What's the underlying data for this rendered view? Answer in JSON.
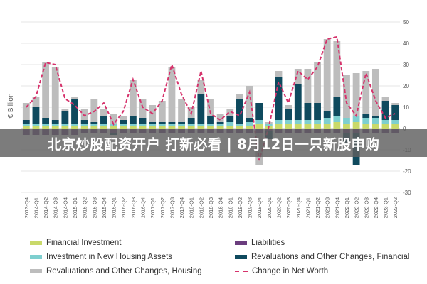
{
  "banner": {
    "text": "北京炒股配资开户 打新必看 | 8月12日一只新股申购"
  },
  "chart_data": {
    "type": "bar",
    "stacked": true,
    "title": "",
    "xlabel": "",
    "ylabel": "€ Billion",
    "ylim": [
      -30,
      50
    ],
    "yticks": [
      50,
      40,
      30,
      20,
      10,
      0,
      -10,
      -20,
      -30
    ],
    "grid": true,
    "legend_position": "bottom",
    "categories": [
      "2013-Q4",
      "2014-Q1",
      "2014-Q2",
      "2014-Q3",
      "2014-Q4",
      "2015-Q1",
      "2015-Q2",
      "2015-Q3",
      "2015-Q4",
      "2016-Q1",
      "2016-Q2",
      "2016-Q3",
      "2016-Q4",
      "2017-Q1",
      "2017-Q2",
      "2017-Q3",
      "2017-Q4",
      "2018-Q1",
      "2018-Q2",
      "2018-Q3",
      "2018-Q4",
      "2019-Q1",
      "2019-Q2",
      "2019-Q3",
      "2019-Q4",
      "2020-Q1",
      "2020-Q2",
      "2020-Q3",
      "2020-Q4",
      "2021-Q1",
      "2021-Q2",
      "2021-Q3",
      "2021-Q4",
      "2022-Q1",
      "2022-Q2",
      "2022-Q3",
      "2022-Q4",
      "2023-Q1",
      "2023-Q2"
    ],
    "series": [
      {
        "name": "Financial Investment",
        "color": "#c9d96a",
        "values": [
          1,
          1,
          1,
          1,
          1,
          1,
          1,
          1,
          1,
          1,
          1,
          1,
          1,
          1,
          1,
          1,
          1,
          1,
          1,
          1,
          1,
          1,
          1,
          1,
          2,
          1,
          2,
          2,
          2,
          2,
          2,
          2,
          3,
          2,
          3,
          2,
          2,
          2,
          2
        ]
      },
      {
        "name": "Liabilities",
        "color": "#6b3d7e",
        "values": [
          -3,
          -3,
          -3,
          -3,
          -3,
          -3,
          -2,
          -2,
          -2,
          -2,
          -2,
          -2,
          -2,
          -2,
          -2,
          -2,
          -2,
          -2,
          -2,
          -2,
          -2,
          -2,
          -2,
          -2,
          -2,
          -1,
          -2,
          -2,
          -2,
          -2,
          -2,
          -2,
          -2,
          -2,
          -2,
          -2,
          -2,
          -2,
          -2
        ]
      },
      {
        "name": "Investment in New Housing Assets",
        "color": "#7ecfcf",
        "values": [
          1,
          1,
          1,
          1,
          1,
          1,
          1,
          1,
          1,
          1,
          1,
          1,
          1,
          1,
          1,
          1,
          1,
          1,
          1,
          1,
          1,
          2,
          1,
          2,
          2,
          1,
          2,
          2,
          2,
          2,
          2,
          3,
          3,
          3,
          3,
          3,
          3,
          2,
          2
        ]
      },
      {
        "name": "Revaluations and Other Changes, Financial",
        "color": "#0f4a5e",
        "values": [
          2,
          8,
          3,
          2,
          6,
          12,
          2,
          1,
          4,
          -1,
          2,
          4,
          3,
          1,
          1,
          1,
          1,
          3,
          14,
          4,
          1,
          3,
          12,
          2,
          8,
          -4,
          20,
          5,
          17,
          8,
          8,
          3,
          9,
          -5,
          -15,
          2,
          1,
          9,
          7
        ]
      },
      {
        "name": "Revaluations and Other Changes, Housing",
        "color": "#bdbdbd",
        "values": [
          8,
          5,
          26,
          25,
          1,
          1,
          5,
          11,
          3,
          5,
          2,
          17,
          9,
          8,
          10,
          26,
          11,
          5,
          7,
          8,
          4,
          3,
          2,
          15,
          -15,
          1,
          3,
          2,
          7,
          16,
          19,
          34,
          26,
          20,
          20,
          20,
          22,
          2,
          1
        ]
      }
    ],
    "net_worth": {
      "name": "Change in Net Worth",
      "color": "#d6336c",
      "values": [
        10,
        15,
        31,
        30,
        14,
        11,
        6,
        8,
        12,
        2,
        8,
        23,
        10,
        7,
        13,
        30,
        16,
        7,
        27,
        7,
        4,
        8,
        6,
        17,
        -15,
        1,
        22,
        12,
        27,
        23,
        29,
        42,
        43,
        12,
        6,
        26,
        13,
        5,
        7
      ]
    }
  }
}
